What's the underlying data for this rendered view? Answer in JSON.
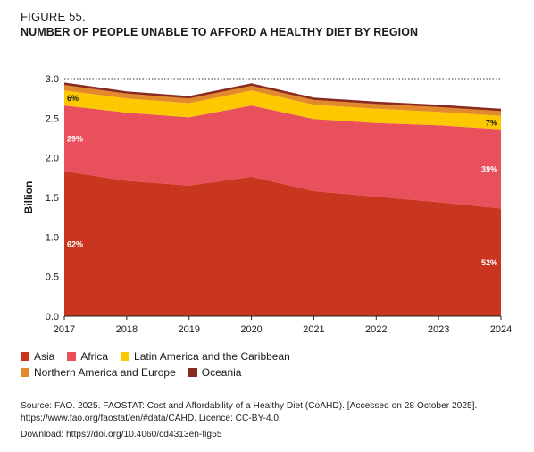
{
  "figure_label": "FIGURE 55.",
  "figure_title": "NUMBER OF PEOPLE UNABLE TO AFFORD A HEALTHY DIET BY REGION",
  "source_line1": "Source: FAO. 2025. FAOSTAT: Cost and Affordability of a Healthy Diet (CoAHD). [Accessed on 28 October 2025].",
  "source_line2": "https://www.fao.org/faostat/en/#data/CAHD. Licence: CC-BY-4.0.",
  "download_line": "Download: https://doi.org/10.4060/cd4313en-fig55",
  "chart_data": {
    "type": "area",
    "stacked": true,
    "ylabel": "Billion",
    "xlabel": "",
    "x": [
      "2017",
      "2018",
      "2019",
      "2020",
      "2021",
      "2022",
      "2023",
      "2024"
    ],
    "ylim": [
      0,
      3.0
    ],
    "yticks": [
      "0.0",
      "0.5",
      "1.0",
      "1.5",
      "2.0",
      "2.5",
      "3.0"
    ],
    "top_gridline_dotted": true,
    "legend_position": "bottom",
    "series": [
      {
        "name": "Asia",
        "color": "#c8361f",
        "values": [
          1.83,
          1.71,
          1.65,
          1.76,
          1.58,
          1.51,
          1.44,
          1.36
        ]
      },
      {
        "name": "Africa",
        "color": "#e8505b",
        "values": [
          0.83,
          0.86,
          0.86,
          0.9,
          0.91,
          0.93,
          0.97,
          1.0
        ]
      },
      {
        "name": "Latin America and the Caribbean",
        "color": "#fdc800",
        "values": [
          0.19,
          0.18,
          0.18,
          0.19,
          0.18,
          0.18,
          0.17,
          0.17
        ]
      },
      {
        "name": "Northern America and Europe",
        "color": "#e2892b",
        "values": [
          0.07,
          0.06,
          0.06,
          0.06,
          0.06,
          0.06,
          0.06,
          0.06
        ]
      },
      {
        "name": "Oceania",
        "color": "#8b2a1e",
        "values": [
          0.03,
          0.03,
          0.03,
          0.03,
          0.03,
          0.03,
          0.03,
          0.03
        ]
      }
    ],
    "annotations": [
      {
        "text": "62%",
        "series": "Asia",
        "x": "2017"
      },
      {
        "text": "29%",
        "series": "Africa",
        "x": "2017"
      },
      {
        "text": "6%",
        "series": "Latin America and the Caribbean",
        "x": "2017"
      },
      {
        "text": "52%",
        "series": "Asia",
        "x": "2024"
      },
      {
        "text": "39%",
        "series": "Africa",
        "x": "2024"
      },
      {
        "text": "7%",
        "series": "Latin America and the Caribbean",
        "x": "2024"
      }
    ]
  }
}
